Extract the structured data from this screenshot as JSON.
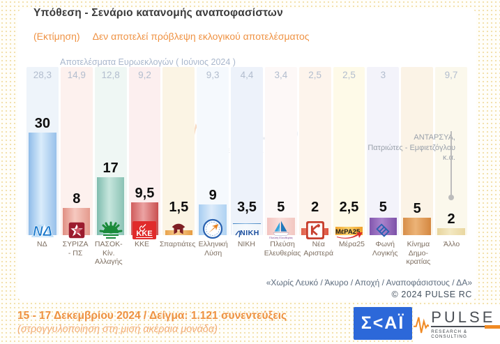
{
  "header": {
    "title": "Υπόθεση - Σενάριο κατανομής αναποφασίστων",
    "subtitle_label": "(Εκτίμηση)",
    "subtitle_text": "Δεν αποτελεί πρόβλεψη εκλογικού αποτελέσματος"
  },
  "euro_header": "Αποτελέσματα Ευρωεκλογών  ( Ιούνιος 2024 )",
  "chart_data": {
    "type": "bar",
    "title": "Υπόθεση - Σενάριο κατανομής αναποφασίστων (Εκτίμηση)",
    "categories": [
      "ΝΔ",
      "ΣΥΡΙΖΑ - ΠΣ",
      "ΠΑΣΟΚ-Κίν. Αλλαγής",
      "ΚΚΕ",
      "Σπαρτιάτες",
      "Ελληνική Λύση",
      "ΝΙΚΗ",
      "Πλεύση Ελευθερίας",
      "Νέα Αριστερά",
      "Μέρα25",
      "Φωνή Λογικής",
      "Κίνημα Δημοκρατίας",
      "Άλλο"
    ],
    "series": [
      {
        "name": "Σενάριο κατανομής αναποφασίστων (Εκτίμηση)",
        "values": [
          30,
          8,
          17,
          9.5,
          1.5,
          9,
          3.5,
          5,
          2,
          2.5,
          5,
          5,
          2
        ],
        "labels": [
          "30",
          "8",
          "17",
          "9,5",
          "1,5",
          "9",
          "3,5",
          "5",
          "2",
          "2,5",
          "5",
          "5",
          "2"
        ]
      },
      {
        "name": "Αποτελέσματα Ευρωεκλογών (Ιούνιος 2024)",
        "values": [
          28.3,
          14.9,
          12.8,
          9.2,
          null,
          9.3,
          4.4,
          3.4,
          2.5,
          2.5,
          3,
          null,
          9.7
        ],
        "labels": [
          "28,3",
          "14,9",
          "12,8",
          "9,2",
          "",
          "9,3",
          "4,4",
          "3,4",
          "2,5",
          "2,5",
          "3",
          "",
          "9,7"
        ]
      }
    ],
    "ylim": [
      0,
      32
    ],
    "grid": false,
    "legend_position": "none",
    "annotation": "ΑΝΤΑΡΣΥΑ, Πατριώτες - Εμφιετζόγλου κ.ά."
  },
  "parties": [
    {
      "id": "nd",
      "label_lines": [
        "ΝΔ"
      ],
      "value": 30,
      "value_label": "30",
      "euro": "28,3",
      "col_bg": "#eef4fa",
      "bar": [
        "#8fbce9",
        "#d9ecfb",
        "#97c0ea"
      ],
      "logo": "nd",
      "logo_text": "ΝΔ"
    },
    {
      "id": "syriza",
      "label_lines": [
        "ΣΥΡΙΖΑ",
        "- ΠΣ"
      ],
      "value": 8,
      "value_label": "8",
      "euro": "14,9",
      "col_bg": "#fdf1ee",
      "bar": [
        "#e08f83",
        "#f6c9c0",
        "#e49a8d"
      ],
      "logo": "syriza",
      "logo_text": ""
    },
    {
      "id": "pasok",
      "label_lines": [
        "ΠΑΣΟΚ-Κίν.",
        "Αλλαγής"
      ],
      "value": 17,
      "value_label": "17",
      "euro": "12,8",
      "col_bg": "#eff7f4",
      "bar": [
        "#7fbcae",
        "#c6e6dd",
        "#8ac2b4"
      ],
      "logo": "pasok",
      "logo_text": ""
    },
    {
      "id": "kke",
      "label_lines": [
        "ΚΚΕ"
      ],
      "value": 9.5,
      "value_label": "9,5",
      "euro": "9,2",
      "col_bg": "#fcefef",
      "bar": [
        "#d05c5c",
        "#eba3a3",
        "#c94f4f"
      ],
      "logo": "kke",
      "logo_text": "KKE"
    },
    {
      "id": "spartiates",
      "label_lines": [
        "Σπαρτιάτες"
      ],
      "value": 1.5,
      "value_label": "1,5",
      "euro": "",
      "col_bg": "#fbf4e4",
      "bar": [
        "#e9a24a",
        "#f6cd92",
        "#e79b40"
      ],
      "logo": "spartiates",
      "logo_text": ""
    },
    {
      "id": "elliniki-lysi",
      "label_lines": [
        "Ελληνική",
        "Λύση"
      ],
      "value": 9,
      "value_label": "9",
      "euro": "9,3",
      "col_bg": "#f5f9fd",
      "bar": [
        "#a6cdf1",
        "#dcebfa",
        "#afd2f2"
      ],
      "logo": "elliniki-lysi",
      "logo_text": ""
    },
    {
      "id": "niki",
      "label_lines": [
        "ΝΙΚΗ"
      ],
      "value": 3.5,
      "value_label": "3,5",
      "euro": "4,4",
      "col_bg": "#edf2fa",
      "bar": [
        "#3f82c2",
        "#82b3de",
        "#4684c0"
      ],
      "logo": "niki",
      "logo_text": "ΝΙΚΗ"
    },
    {
      "id": "plefsi-eleftherias",
      "label_lines": [
        "Πλεύση",
        "Ελευθερίας"
      ],
      "value": 5,
      "value_label": "5",
      "euro": "3,4",
      "col_bg": "#fdf8f7",
      "bar": [
        "#f2c3bf",
        "#fadedb",
        "#f2c7c1"
      ],
      "logo": "plefsi",
      "logo_text": "Πλεύση Ελευθερίας"
    },
    {
      "id": "nea-aristera",
      "label_lines": [
        "Νέα",
        "Αριστερά"
      ],
      "value": 2,
      "value_label": "2",
      "euro": "2,5",
      "col_bg": "#fdf4ec",
      "bar": [
        "#e0604a",
        "#ef9480",
        "#dd5440"
      ],
      "logo": "nea-aristera",
      "logo_text": ""
    },
    {
      "id": "mera25",
      "label_lines": [
        "Μέρα25"
      ],
      "value": 2.5,
      "value_label": "2,5",
      "euro": "2,5",
      "col_bg": "#fefae8",
      "bar": [
        "#f2a52e",
        "#fbd26b",
        "#f0a028"
      ],
      "logo": "mera25",
      "logo_text": "MέPA25"
    },
    {
      "id": "foni-logikis",
      "label_lines": [
        "Φωνή",
        "Λογικής"
      ],
      "value": 5,
      "value_label": "5",
      "euro": "3",
      "col_bg": "#f3f3fa",
      "bar": [
        "#8257ae",
        "#ab84cd",
        "#7d51a8"
      ],
      "logo": "foni",
      "logo_text": ""
    },
    {
      "id": "kinima-dimokratias",
      "label_lines": [
        "Κίνημα",
        "Δημο-",
        "κρατίας"
      ],
      "value": 5,
      "value_label": "5",
      "euro": "",
      "col_bg": "#fbf3e6",
      "bar": [
        "#d78e49",
        "#ecb377",
        "#d48740"
      ],
      "logo": null,
      "logo_text": ""
    },
    {
      "id": "allo",
      "label_lines": [
        "Άλλο"
      ],
      "value": 2,
      "value_label": "2",
      "euro": "9,7",
      "col_bg": "#fbf8ec",
      "bar": [
        "#e7d49c",
        "#f3e8c2",
        "#e9d7a0"
      ],
      "logo": null,
      "logo_text": ""
    }
  ],
  "annotation": {
    "line1": "ΑΝΤΑΡΣΥΑ,",
    "line2": "Πατριώτες - Εμφιετζόγλου",
    "line3": "κ.ά."
  },
  "watermark": {
    "text": "PULSE",
    "sub": "RESEARCH & CONSULTING"
  },
  "footnote": {
    "exclusions": "«Χωρίς Λευκό / Άκυρο / Αποχή / Αναποφάσιστους / ΔΑ»",
    "copyright": "©  2024  PULSE RC"
  },
  "footer": {
    "line1": "15 - 17 Δεκεμβρίου 2024  /  Δείγμα:  1.121 συνεντεύξεις",
    "line2": "(στρογγυλοποίηση στη μισή ακέραια μονάδα)"
  },
  "logos": {
    "skai": "Σ<ΑΪ",
    "pulse": "PULSE",
    "pulse_sub": "RESEARCH & CONSULTING"
  },
  "colors": {
    "accent_orange": "#ee9140",
    "skai_blue": "#2c68d9",
    "pulse_orange": "#f08a24",
    "euro_text": "#b2bdce",
    "annotation_gray": "#9aa1ab"
  }
}
